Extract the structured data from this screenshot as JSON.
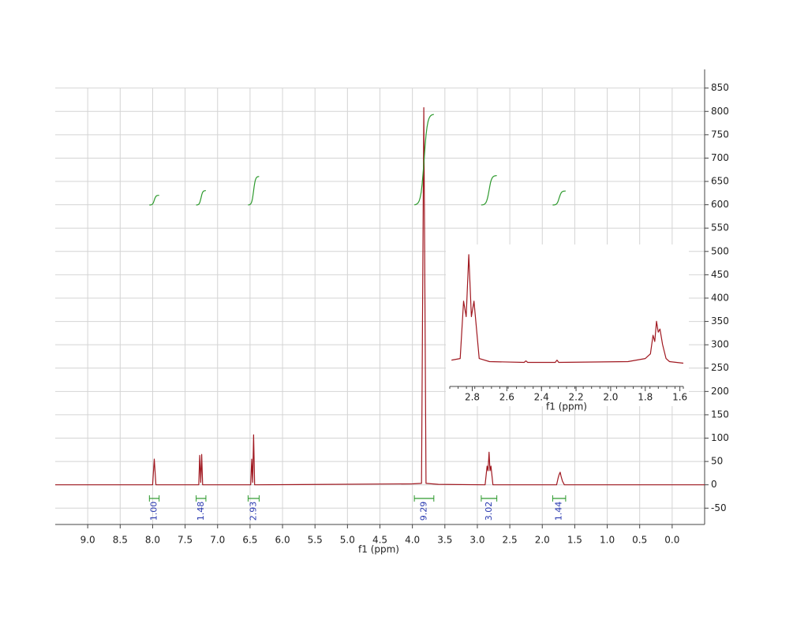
{
  "chart_data": [
    {
      "type": "line",
      "color": "#a01820",
      "xlabel": "f1 (ppm)",
      "x": [
        9.5,
        8.0,
        7.975,
        7.95,
        7.29,
        7.275,
        7.26,
        7.245,
        7.23,
        6.49,
        6.475,
        6.46,
        6.445,
        6.43,
        4.0,
        3.86,
        3.825,
        3.79,
        3.6,
        2.88,
        2.85,
        2.835,
        2.82,
        2.805,
        2.79,
        2.76,
        1.78,
        1.755,
        1.74,
        1.725,
        1.71,
        1.69,
        1.66,
        -0.5
      ],
      "values": [
        0,
        0,
        55,
        0,
        0,
        63,
        5,
        65,
        0,
        0,
        55,
        5,
        107,
        0,
        2,
        3,
        808,
        3,
        1,
        0,
        40,
        30,
        70,
        30,
        40,
        0,
        0,
        15,
        22,
        27,
        18,
        8,
        0,
        0
      ],
      "xlim": [
        9.5,
        -0.5
      ],
      "ylim": [
        -85,
        890
      ],
      "xticks": [
        {
          "value": 9,
          "label": "9.0"
        },
        8.5,
        {
          "value": 8,
          "label": "8.0"
        },
        7.5,
        {
          "value": 7,
          "label": "7.0"
        },
        6.5,
        {
          "value": 6,
          "label": "6.0"
        },
        5.5,
        {
          "value": 5,
          "label": "5.0"
        },
        4.5,
        {
          "value": 4,
          "label": "4.0"
        },
        3.5,
        {
          "value": 3,
          "label": "3.0"
        },
        2.5,
        {
          "value": 2,
          "label": "2.0"
        },
        1.5,
        {
          "value": 1,
          "label": "1.0"
        },
        0.5,
        {
          "value": 0,
          "label": "0.0"
        }
      ],
      "yticks": [
        -50,
        0,
        50,
        100,
        150,
        200,
        250,
        300,
        350,
        400,
        450,
        500,
        550,
        600,
        650,
        700,
        750,
        800,
        850
      ],
      "grid": true,
      "integrals": {
        "color": "#2e9a2e",
        "label_color": "#2a3ab0",
        "ranges": [
          [
            8.05,
            7.9
          ],
          [
            7.33,
            7.18
          ],
          [
            6.53,
            6.36
          ],
          [
            3.97,
            3.67
          ],
          [
            2.94,
            2.7
          ],
          [
            1.84,
            1.64
          ]
        ],
        "values": [
          1,
          1.48,
          2.93,
          9.29,
          3.02,
          1.44
        ],
        "value_labels": [
          "1.00",
          "1.48",
          "2.93",
          "9.29",
          "3.02",
          "1.44"
        ]
      }
    },
    {
      "type": "line",
      "color": "#a01820",
      "xlabel": "f1 (ppm)",
      "x": [
        2.92,
        2.87,
        2.85,
        2.835,
        2.82,
        2.805,
        2.79,
        2.76,
        2.7,
        2.5,
        2.49,
        2.48,
        2.32,
        2.31,
        2.3,
        1.9,
        1.8,
        1.77,
        1.755,
        1.745,
        1.735,
        1.725,
        1.715,
        1.7,
        1.68,
        1.66,
        1.58
      ],
      "values": [
        2,
        3,
        40,
        30,
        70,
        30,
        40,
        3,
        1,
        0.5,
        1.5,
        0.5,
        0.5,
        2,
        0.5,
        1,
        3,
        6,
        18,
        14,
        27,
        20,
        22,
        12,
        3,
        1,
        0
      ],
      "xlim": [
        2.93,
        1.58
      ],
      "ylim": [
        -15,
        74
      ],
      "xticks": [
        2.8,
        2.6,
        2.4,
        2.2,
        {
          "value": 2,
          "label": "2.0"
        },
        1.8,
        1.6
      ]
    }
  ]
}
